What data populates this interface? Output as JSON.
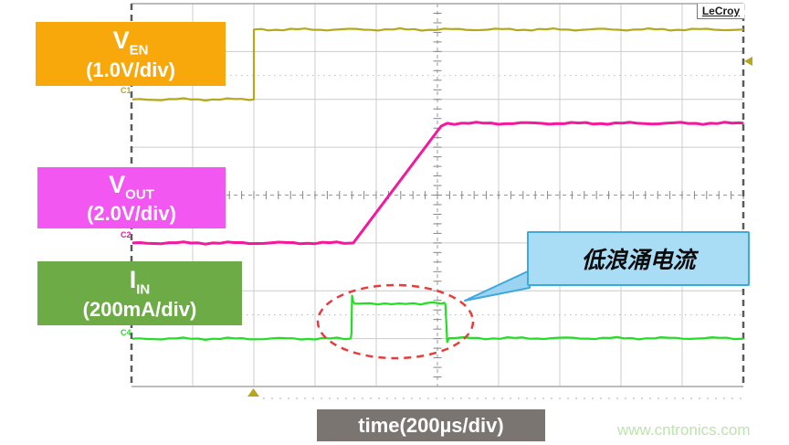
{
  "scope": {
    "brand": "LeCroy",
    "channels": [
      {
        "id": "C1",
        "sym": "V",
        "sub": "EN",
        "scale": "(1.0V/div)",
        "box_color": "#F9A80B",
        "trace_color": "#B5A81E"
      },
      {
        "id": "C2",
        "sym": "V",
        "sub": "OUT",
        "scale": "(2.0V/div)",
        "box_color": "#F257F2",
        "trace_color": "#F3189C"
      },
      {
        "id": "C4",
        "sym": "I",
        "sub": "IN",
        "scale": "(200mA/div)",
        "box_color": "#6CAB45",
        "trace_color": "#23DF23"
      }
    ],
    "timebase_label": "time(200µs/div)",
    "annotation": {
      "text": "低浪涌电流",
      "fill": "#A9DCF5",
      "border": "#3FA8DC"
    },
    "ellipse_color": "#E93B3B",
    "trigger_marker_color": "#B8A51E",
    "watermark": "www.cntronics.com"
  },
  "chart_data": {
    "type": "line",
    "title": "",
    "x_axis": {
      "label": "time(200µs/div)",
      "us_per_div": 200,
      "divisions": 10,
      "trigger_at_div": 2
    },
    "y_axis": {
      "divisions": 8,
      "grid": true,
      "dotted_rows_div_from_center": [
        -2.5,
        2.5
      ]
    },
    "series": [
      {
        "name": "V_EN",
        "channel": "C1",
        "per_div": "1.0V",
        "color": "#B5A81E",
        "baseline_div_from_top": 2,
        "amplitude_div": 1.46,
        "amplitude_value": "1.5V",
        "points_t_us_v_div": [
          [
            -397,
            0
          ],
          [
            0,
            0
          ],
          [
            0,
            1.46
          ],
          [
            1601,
            1.46
          ]
        ]
      },
      {
        "name": "V_OUT",
        "channel": "C2",
        "per_div": "2.0V",
        "color": "#F3189C",
        "baseline_div_from_top": 5,
        "amplitude_div": 2.5,
        "amplitude_value": "5.0V",
        "points_t_us_v_div": [
          [
            -397,
            0
          ],
          [
            325,
            0
          ],
          [
            612,
            2.44
          ],
          [
            632,
            2.5
          ],
          [
            1601,
            2.5
          ]
        ]
      },
      {
        "name": "I_IN",
        "channel": "C4",
        "per_div": "200mA",
        "color": "#23DF23",
        "baseline_div_from_top": 7,
        "amplitude_div": 0.73,
        "amplitude_value": "145mA",
        "points_t_us_v_div": [
          [
            -397,
            0
          ],
          [
            316,
            0
          ],
          [
            319,
            0.1
          ],
          [
            321,
            0.9
          ],
          [
            324,
            0.78
          ],
          [
            330,
            0.73
          ],
          [
            380,
            0.74
          ],
          [
            450,
            0.72
          ],
          [
            560,
            0.74
          ],
          [
            614,
            0.73
          ],
          [
            622,
            0.75
          ],
          [
            626,
            0.72
          ],
          [
            629,
            0.35
          ],
          [
            632,
            -0.07
          ],
          [
            638,
            0.01
          ],
          [
            1601,
            0
          ]
        ]
      }
    ],
    "annotations": [
      {
        "type": "ellipse",
        "meaning": "inrush-current-region"
      },
      {
        "type": "callout",
        "text": "低浪涌电流"
      }
    ],
    "legend_position": "left-labels"
  }
}
